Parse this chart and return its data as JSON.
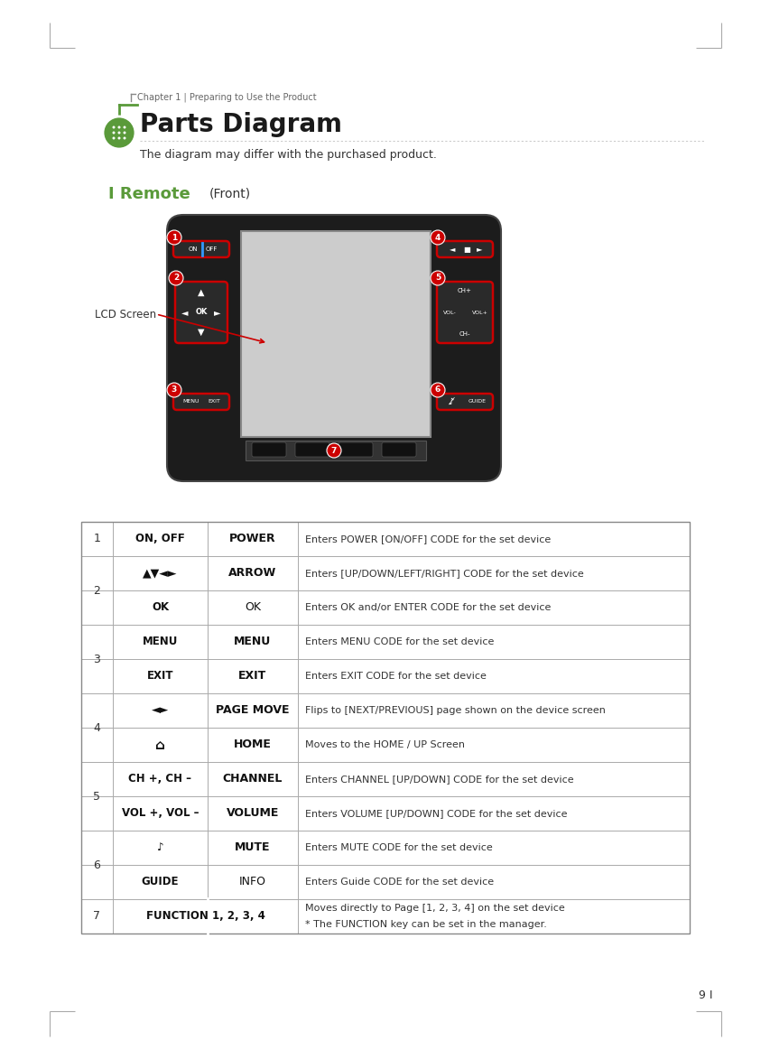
{
  "page_bg": "#ffffff",
  "chapter_text": "Chapter 1 | Preparing to Use the Product",
  "title": "Parts Diagram",
  "subtitle": "The diagram may differ with the purchased product.",
  "green_color": "#5a9a3a",
  "lcd_screen_label": "LCD Screen",
  "page_number": "9 I",
  "dark_text": "#333333",
  "light_text": "#666666",
  "table_border": "#999999"
}
